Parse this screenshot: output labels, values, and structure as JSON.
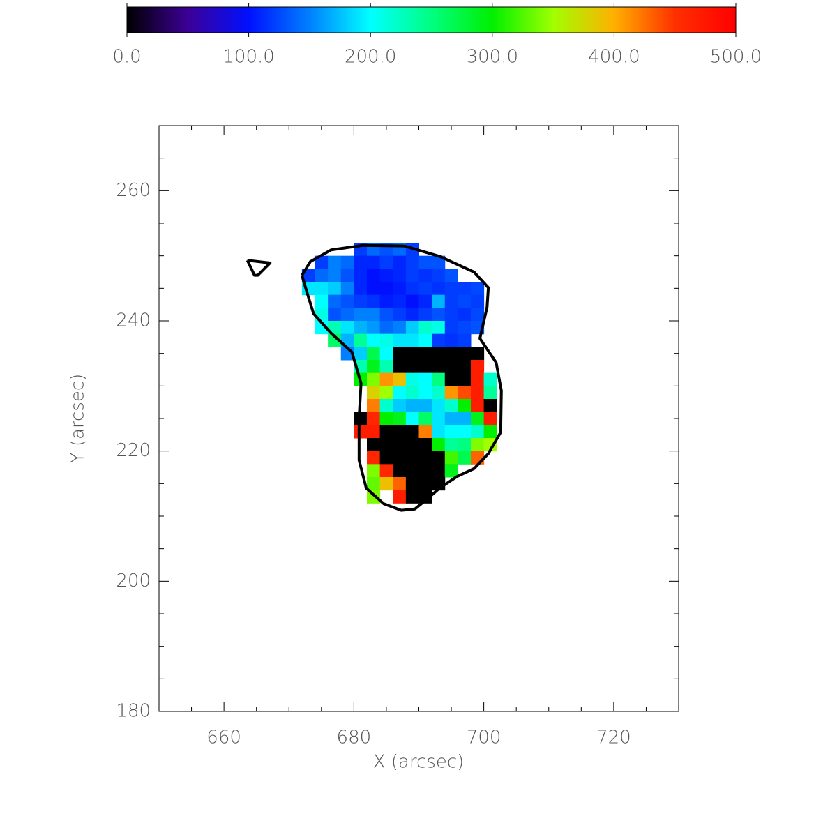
{
  "chart_data": {
    "type": "heatmap",
    "x_label": "X (arcsec)",
    "y_label": "Y (arcsec)",
    "xlim": [
      650,
      730
    ],
    "ylim": [
      180,
      270
    ],
    "xticks": [
      660,
      680,
      700,
      720
    ],
    "yticks": [
      180,
      200,
      220,
      240,
      260
    ],
    "xminorticks": [
      655,
      665,
      670,
      675,
      685,
      690,
      695,
      705,
      710,
      715,
      725
    ],
    "yminorticks": [
      185,
      190,
      195,
      205,
      210,
      215,
      225,
      230,
      235,
      245,
      250,
      255,
      265
    ],
    "clim": [
      0,
      500
    ],
    "cticks": [
      {
        "value": 0,
        "label": "0.0"
      },
      {
        "value": 100,
        "label": "100.0"
      },
      {
        "value": 200,
        "label": "200.0"
      },
      {
        "value": 300,
        "label": "300.0"
      },
      {
        "value": 400,
        "label": "400.0"
      },
      {
        "value": 500,
        "label": "500.0"
      }
    ],
    "colormap": [
      "#000000",
      "#3c0096",
      "#0010ff",
      "#0080ff",
      "#00ffff",
      "#00ff80",
      "#00f000",
      "#a0ff00",
      "#ffb000",
      "#ff3000",
      "#ff0000"
    ],
    "x": [
      673,
      675,
      677,
      679,
      681,
      683,
      685,
      687,
      689,
      691,
      693,
      695,
      697,
      699,
      701
    ],
    "y": [
      251,
      249,
      247,
      245,
      243,
      241,
      239,
      237,
      235,
      233,
      231,
      229,
      227,
      225,
      223,
      221,
      219,
      217,
      215,
      213
    ],
    "z": [
      [
        null,
        null,
        null,
        null,
        120,
        140,
        130,
        140,
        120,
        null,
        null,
        null,
        null,
        null,
        null
      ],
      [
        null,
        120,
        150,
        140,
        110,
        110,
        120,
        110,
        120,
        130,
        130,
        null,
        null,
        null,
        null
      ],
      [
        120,
        140,
        150,
        130,
        110,
        100,
        105,
        110,
        120,
        115,
        120,
        130,
        null,
        null,
        null
      ],
      [
        190,
        190,
        180,
        150,
        110,
        100,
        100,
        105,
        115,
        120,
        115,
        120,
        120,
        125,
        null
      ],
      [
        null,
        200,
        140,
        130,
        120,
        115,
        105,
        110,
        100,
        110,
        170,
        120,
        125,
        120,
        null
      ],
      [
        null,
        210,
        130,
        140,
        150,
        150,
        130,
        120,
        110,
        120,
        130,
        120,
        115,
        125,
        null
      ],
      [
        null,
        200,
        230,
        190,
        170,
        160,
        140,
        150,
        180,
        220,
        210,
        120,
        125,
        130,
        null
      ],
      [
        null,
        null,
        260,
        170,
        240,
        200,
        210,
        190,
        190,
        200,
        120,
        115,
        120,
        null,
        null
      ],
      [
        null,
        null,
        null,
        150,
        180,
        270,
        200,
        0,
        0,
        0,
        0,
        0,
        0,
        0,
        null
      ],
      [
        null,
        null,
        null,
        null,
        230,
        290,
        230,
        0,
        0,
        0,
        0,
        0,
        0,
        470,
        null
      ],
      [
        null,
        null,
        null,
        null,
        300,
        340,
        410,
        390,
        210,
        200,
        250,
        0,
        0,
        470,
        220
      ],
      [
        null,
        null,
        null,
        null,
        null,
        380,
        350,
        200,
        220,
        200,
        220,
        410,
        440,
        470,
        240
      ],
      [
        null,
        null,
        null,
        null,
        null,
        420,
        220,
        180,
        170,
        170,
        190,
        220,
        300,
        470,
        0
      ],
      [
        null,
        null,
        null,
        null,
        0,
        460,
        300,
        290,
        200,
        260,
        190,
        170,
        170,
        290,
        470
      ],
      [
        null,
        null,
        null,
        null,
        470,
        470,
        0,
        0,
        0,
        420,
        190,
        200,
        200,
        220,
        300
      ],
      [
        null,
        null,
        null,
        null,
        null,
        0,
        0,
        0,
        0,
        0,
        300,
        240,
        250,
        340,
        350
      ],
      [
        null,
        null,
        null,
        null,
        null,
        460,
        0,
        0,
        0,
        0,
        0,
        320,
        270,
        430,
        null
      ],
      [
        null,
        null,
        null,
        null,
        null,
        340,
        460,
        0,
        0,
        0,
        0,
        290,
        null,
        null,
        null
      ],
      [
        null,
        null,
        null,
        null,
        null,
        330,
        390,
        430,
        0,
        0,
        0,
        null,
        null,
        null,
        null
      ],
      [
        null,
        null,
        null,
        null,
        null,
        340,
        null,
        470,
        0,
        0,
        null,
        null,
        null,
        null,
        null
      ]
    ],
    "contours": [
      {
        "x": [
          672.0,
          673.3,
          676.5,
          681.4,
          687.8,
          693.2,
          698.5,
          700.7,
          700.5,
          699.4,
          701.9,
          702.7,
          702.6,
          700.7,
          698.5,
          695.9,
          693.2,
          691.0,
          689.4,
          687.3,
          684.6,
          681.9,
          680.8,
          680.8,
          681.1,
          679.7,
          676.5,
          673.8,
          672.8,
          672.0
        ],
        "y": [
          247.0,
          249.1,
          250.9,
          251.6,
          251.5,
          249.9,
          247.5,
          245.1,
          242.1,
          237.3,
          233.6,
          229.3,
          222.9,
          219.6,
          217.3,
          216.1,
          214.3,
          212.4,
          211.1,
          210.9,
          211.9,
          214.3,
          218.6,
          225.0,
          230.4,
          235.2,
          238.1,
          241.1,
          244.3,
          247.0
        ]
      },
      {
        "x": [
          663.6,
          667.1,
          665.2,
          664.7,
          663.6
        ],
        "y": [
          249.3,
          248.9,
          247.0,
          247.0,
          249.3
        ]
      }
    ]
  }
}
